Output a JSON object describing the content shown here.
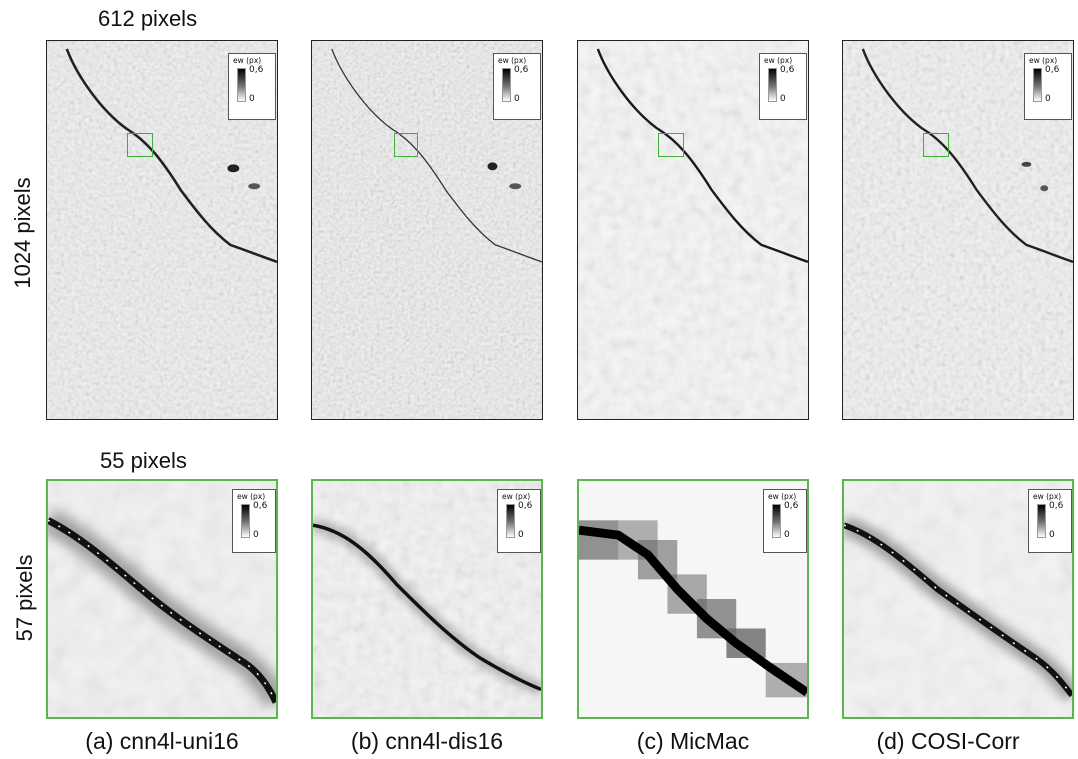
{
  "dimensions": {
    "top_width": "612 pixels",
    "top_height": "1024 pixels",
    "zoom_width": "55 pixels",
    "zoom_height": "57 pixels"
  },
  "legend": {
    "title": "ew (px)",
    "max": "0,6",
    "min": "0"
  },
  "methods": [
    {
      "caption": "(a) cnn4l-uni16"
    },
    {
      "caption": "(b) cnn4l-dis16"
    },
    {
      "caption": "(c) MicMac"
    },
    {
      "caption": "(d) COSI-Corr"
    }
  ],
  "colors": {
    "zoom_frame": "#5db552",
    "panel_frame": "#222222"
  }
}
